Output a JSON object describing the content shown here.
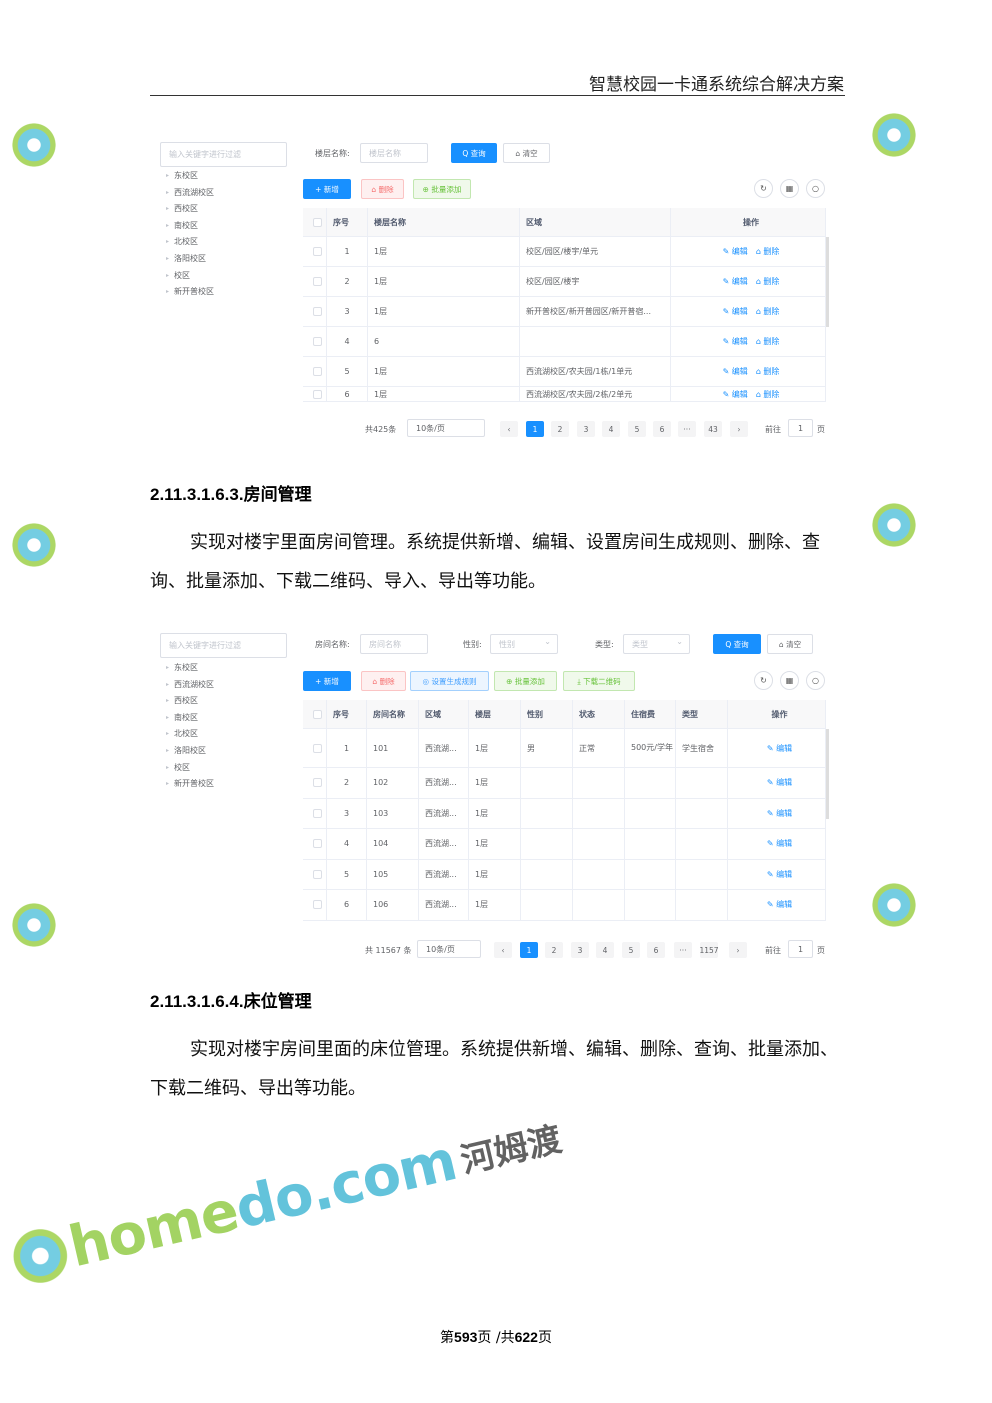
{
  "header": {
    "title": "智慧校园一卡通系统综合解决方案"
  },
  "shot1": {
    "tree_placeholder": "输入关键字进行过滤",
    "tree": [
      "东校区",
      "西流湖校区",
      "西校区",
      "南校区",
      "北校区",
      "洛阳校区",
      "校区",
      "新开普校区"
    ],
    "filters": [
      {
        "label": "楼层名称:",
        "placeholder": "楼层名称"
      }
    ],
    "query_btn": "Q 查询",
    "clear_btn": "⌂ 清空",
    "toolbar": [
      {
        "label": "+ 新增",
        "style": "blue"
      },
      {
        "label": "⌂ 删除",
        "style": "red"
      },
      {
        "label": "⊕ 批量添加",
        "style": "green"
      }
    ],
    "tool_icons": [
      "refresh-icon",
      "grid-icon",
      "search-icon"
    ],
    "columns": [
      "",
      "序号",
      "楼层名称",
      "区域",
      "操作"
    ],
    "rows": [
      [
        "1",
        "1层",
        "校区/园区/楼宇/单元"
      ],
      [
        "2",
        "1层",
        "校区/园区/楼宇"
      ],
      [
        "3",
        "1层",
        "新开普校区/新开普园区/新开普宿..."
      ],
      [
        "4",
        "6",
        ""
      ],
      [
        "5",
        "1层",
        "西流湖校区/农夫园/1栋/1单元"
      ],
      [
        "6",
        "1层",
        "西流湖校区/农夫园/2栋/2单元"
      ]
    ],
    "actions": [
      "✎ 编辑",
      "⌂ 删除"
    ],
    "pagination": {
      "total": "共425条",
      "page_size": "10条/页",
      "pages": [
        "1",
        "2",
        "3",
        "4",
        "5",
        "6",
        "···",
        "43"
      ],
      "current": "1",
      "goto_label": "前往",
      "goto_value": "1",
      "page_suffix": "页"
    }
  },
  "section1": {
    "number": "2.11.3.1.6.3.",
    "title": "房间管理",
    "text": "实现对楼宇里面房间管理。系统提供新增、编辑、设置房间生成规则、删除、查询、批量添加、下载二维码、导入、导出等功能。"
  },
  "shot2": {
    "tree_placeholder": "输入关键字进行过滤",
    "tree": [
      "东校区",
      "西流湖校区",
      "西校区",
      "南校区",
      "北校区",
      "洛阳校区",
      "校区",
      "新开普校区"
    ],
    "filters": [
      {
        "label": "房间名称:",
        "placeholder": "房间名称"
      },
      {
        "label": "性别:",
        "placeholder": "性别"
      },
      {
        "label": "类型:",
        "placeholder": "类型"
      }
    ],
    "query_btn": "Q 查询",
    "clear_btn": "⌂ 清空",
    "toolbar": [
      {
        "label": "+ 新增",
        "style": "blue"
      },
      {
        "label": "⌂ 删除",
        "style": "red"
      },
      {
        "label": "◎ 设置生成规则",
        "style": "lblue"
      },
      {
        "label": "⊕ 批量添加",
        "style": "green"
      },
      {
        "label": "⤓ 下载二维码",
        "style": "green"
      }
    ],
    "tool_icons": [
      "refresh-icon",
      "grid-icon",
      "search-icon"
    ],
    "columns": [
      "",
      "序号",
      "房间名称",
      "区域",
      "楼层",
      "性别",
      "状态",
      "住宿费",
      "类型",
      "操作"
    ],
    "rows": [
      [
        "1",
        "101",
        "西流湖...",
        "1层",
        "男",
        "正常",
        "500元/学年",
        "学生宿舍"
      ],
      [
        "2",
        "102",
        "西流湖...",
        "1层",
        "",
        "",
        "",
        ""
      ],
      [
        "3",
        "103",
        "西流湖...",
        "1层",
        "",
        "",
        "",
        ""
      ],
      [
        "4",
        "104",
        "西流湖...",
        "1层",
        "",
        "",
        "",
        ""
      ],
      [
        "5",
        "105",
        "西流湖...",
        "1层",
        "",
        "",
        "",
        ""
      ],
      [
        "6",
        "106",
        "西流湖...",
        "1层",
        "",
        "",
        "",
        ""
      ]
    ],
    "actions": [
      "✎ 编辑"
    ],
    "pagination": {
      "total": "共 11567 条",
      "page_size": "10条/页",
      "pages": [
        "1",
        "2",
        "3",
        "4",
        "5",
        "6",
        "···",
        "1157"
      ],
      "current": "1",
      "goto_label": "前往",
      "goto_value": "1",
      "page_suffix": "页"
    }
  },
  "section2": {
    "number": "2.11.3.1.6.4.",
    "title": "床位管理",
    "text": "实现对楼宇房间里面的床位管理。系统提供新增、编辑、删除、查询、批量添加、下载二维码、导出等功能。"
  },
  "footer": {
    "prefix": "第",
    "page": "593",
    "mid": "页 /共",
    "total": "622",
    "suffix": "页"
  },
  "watermark": {
    "en_a": "home",
    "en_b": "do",
    "en_c": ".com",
    "cn": "河姆渡"
  }
}
